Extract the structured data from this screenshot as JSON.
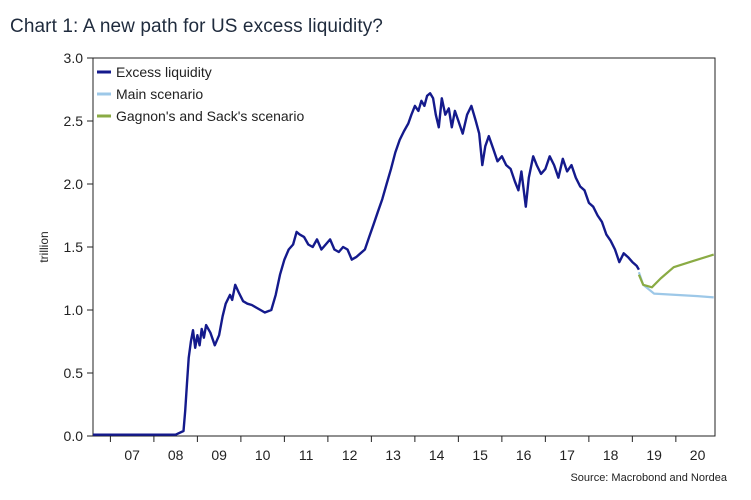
{
  "title": "Chart 1: A new path for US excess liquidity?",
  "source": "Source: Macrobond and Nordea",
  "chart_data": {
    "type": "line",
    "title": "Chart 1: A new path for US excess liquidity?",
    "ylabel": "trillion",
    "xlabel": "",
    "ylim": [
      0,
      3.0
    ],
    "xlim": [
      2006.6,
      2020.9
    ],
    "yticks": [
      "0.0",
      "0.5",
      "1.0",
      "1.5",
      "2.0",
      "2.5",
      "3.0"
    ],
    "xticks": [
      {
        "label": "07",
        "x": 2007.0
      },
      {
        "label": "08",
        "x": 2008.0
      },
      {
        "label": "09",
        "x": 2009.0
      },
      {
        "label": "10",
        "x": 2010.0
      },
      {
        "label": "11",
        "x": 2011.0
      },
      {
        "label": "12",
        "x": 2012.0
      },
      {
        "label": "13",
        "x": 2013.0
      },
      {
        "label": "14",
        "x": 2014.0
      },
      {
        "label": "15",
        "x": 2015.0
      },
      {
        "label": "16",
        "x": 2016.0
      },
      {
        "label": "17",
        "x": 2017.0
      },
      {
        "label": "18",
        "x": 2018.0
      },
      {
        "label": "19",
        "x": 2019.0
      },
      {
        "label": "20",
        "x": 2020.0
      }
    ],
    "grid": false,
    "legend_position": "top-left",
    "series": [
      {
        "name": "Excess liquidity",
        "color": "#141a8c",
        "points": [
          [
            2006.6,
            0.01
          ],
          [
            2007.5,
            0.01
          ],
          [
            2008.0,
            0.01
          ],
          [
            2008.5,
            0.01
          ],
          [
            2008.68,
            0.04
          ],
          [
            2008.72,
            0.2
          ],
          [
            2008.76,
            0.42
          ],
          [
            2008.8,
            0.62
          ],
          [
            2008.85,
            0.75
          ],
          [
            2008.9,
            0.84
          ],
          [
            2008.95,
            0.7
          ],
          [
            2009.0,
            0.8
          ],
          [
            2009.05,
            0.72
          ],
          [
            2009.1,
            0.85
          ],
          [
            2009.15,
            0.78
          ],
          [
            2009.2,
            0.88
          ],
          [
            2009.3,
            0.82
          ],
          [
            2009.4,
            0.72
          ],
          [
            2009.5,
            0.8
          ],
          [
            2009.58,
            0.95
          ],
          [
            2009.65,
            1.05
          ],
          [
            2009.75,
            1.12
          ],
          [
            2009.8,
            1.08
          ],
          [
            2009.87,
            1.2
          ],
          [
            2009.95,
            1.14
          ],
          [
            2010.05,
            1.07
          ],
          [
            2010.15,
            1.05
          ],
          [
            2010.25,
            1.04
          ],
          [
            2010.35,
            1.02
          ],
          [
            2010.45,
            1.0
          ],
          [
            2010.55,
            0.98
          ],
          [
            2010.7,
            1.0
          ],
          [
            2010.8,
            1.12
          ],
          [
            2010.9,
            1.28
          ],
          [
            2011.0,
            1.4
          ],
          [
            2011.1,
            1.48
          ],
          [
            2011.2,
            1.52
          ],
          [
            2011.28,
            1.62
          ],
          [
            2011.35,
            1.6
          ],
          [
            2011.45,
            1.58
          ],
          [
            2011.55,
            1.52
          ],
          [
            2011.65,
            1.5
          ],
          [
            2011.75,
            1.56
          ],
          [
            2011.85,
            1.48
          ],
          [
            2011.95,
            1.52
          ],
          [
            2012.05,
            1.56
          ],
          [
            2012.15,
            1.48
          ],
          [
            2012.25,
            1.46
          ],
          [
            2012.35,
            1.5
          ],
          [
            2012.45,
            1.48
          ],
          [
            2012.55,
            1.4
          ],
          [
            2012.65,
            1.42
          ],
          [
            2012.75,
            1.45
          ],
          [
            2012.85,
            1.48
          ],
          [
            2012.95,
            1.58
          ],
          [
            2013.05,
            1.68
          ],
          [
            2013.15,
            1.78
          ],
          [
            2013.25,
            1.88
          ],
          [
            2013.35,
            2.0
          ],
          [
            2013.45,
            2.12
          ],
          [
            2013.55,
            2.25
          ],
          [
            2013.65,
            2.35
          ],
          [
            2013.75,
            2.42
          ],
          [
            2013.85,
            2.48
          ],
          [
            2013.92,
            2.55
          ],
          [
            2014.0,
            2.62
          ],
          [
            2014.08,
            2.58
          ],
          [
            2014.15,
            2.66
          ],
          [
            2014.22,
            2.62
          ],
          [
            2014.28,
            2.7
          ],
          [
            2014.35,
            2.72
          ],
          [
            2014.42,
            2.68
          ],
          [
            2014.48,
            2.55
          ],
          [
            2014.55,
            2.45
          ],
          [
            2014.62,
            2.68
          ],
          [
            2014.7,
            2.55
          ],
          [
            2014.78,
            2.6
          ],
          [
            2014.85,
            2.45
          ],
          [
            2014.92,
            2.58
          ],
          [
            2015.0,
            2.5
          ],
          [
            2015.1,
            2.4
          ],
          [
            2015.2,
            2.55
          ],
          [
            2015.3,
            2.62
          ],
          [
            2015.4,
            2.5
          ],
          [
            2015.48,
            2.4
          ],
          [
            2015.55,
            2.15
          ],
          [
            2015.62,
            2.3
          ],
          [
            2015.7,
            2.38
          ],
          [
            2015.8,
            2.28
          ],
          [
            2015.9,
            2.18
          ],
          [
            2016.0,
            2.22
          ],
          [
            2016.1,
            2.15
          ],
          [
            2016.2,
            2.12
          ],
          [
            2016.3,
            2.02
          ],
          [
            2016.38,
            1.95
          ],
          [
            2016.45,
            2.1
          ],
          [
            2016.55,
            1.82
          ],
          [
            2016.62,
            2.05
          ],
          [
            2016.72,
            2.22
          ],
          [
            2016.8,
            2.15
          ],
          [
            2016.9,
            2.08
          ],
          [
            2017.0,
            2.12
          ],
          [
            2017.1,
            2.22
          ],
          [
            2017.2,
            2.15
          ],
          [
            2017.3,
            2.05
          ],
          [
            2017.4,
            2.2
          ],
          [
            2017.5,
            2.1
          ],
          [
            2017.6,
            2.15
          ],
          [
            2017.7,
            2.05
          ],
          [
            2017.8,
            1.98
          ],
          [
            2017.9,
            1.95
          ],
          [
            2018.0,
            1.85
          ],
          [
            2018.1,
            1.82
          ],
          [
            2018.2,
            1.75
          ],
          [
            2018.3,
            1.7
          ],
          [
            2018.4,
            1.6
          ],
          [
            2018.5,
            1.55
          ],
          [
            2018.6,
            1.48
          ],
          [
            2018.7,
            1.38
          ],
          [
            2018.8,
            1.45
          ],
          [
            2018.9,
            1.42
          ],
          [
            2019.0,
            1.38
          ],
          [
            2019.1,
            1.35
          ],
          [
            2019.15,
            1.32
          ]
        ]
      },
      {
        "name": "Main scenario",
        "color": "#9dc8e8",
        "points": [
          [
            2019.15,
            1.3
          ],
          [
            2019.25,
            1.2
          ],
          [
            2019.5,
            1.13
          ],
          [
            2020.0,
            1.12
          ],
          [
            2020.5,
            1.11
          ],
          [
            2020.87,
            1.1
          ]
        ]
      },
      {
        "name": "Gagnon's and Sack's scenario",
        "color": "#8aab44",
        "points": [
          [
            2019.15,
            1.28
          ],
          [
            2019.25,
            1.2
          ],
          [
            2019.45,
            1.18
          ],
          [
            2019.65,
            1.25
          ],
          [
            2019.95,
            1.34
          ],
          [
            2020.4,
            1.39
          ],
          [
            2020.87,
            1.44
          ]
        ]
      }
    ]
  }
}
